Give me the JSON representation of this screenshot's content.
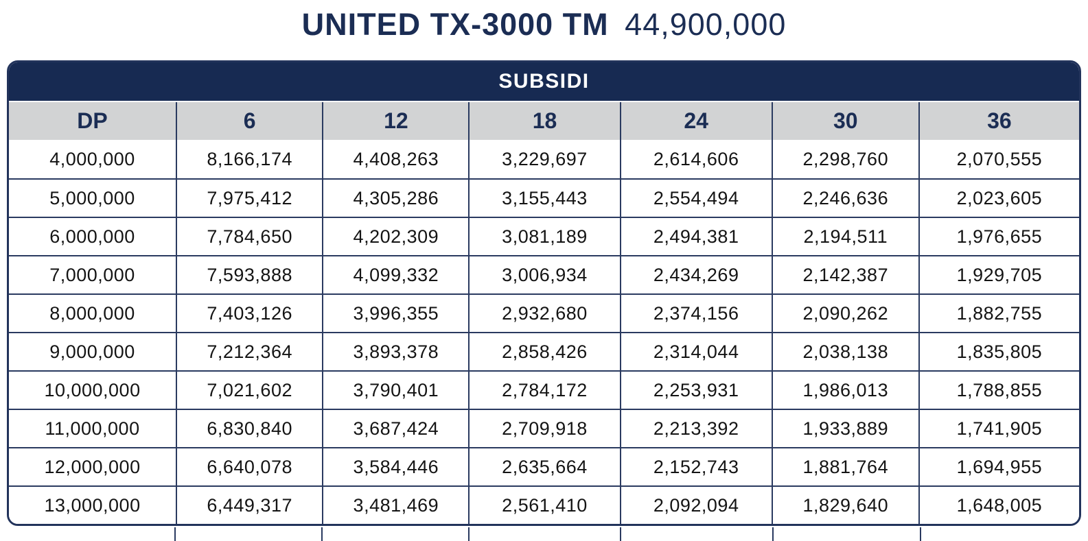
{
  "title": {
    "model": "UNITED TX-3000 TM",
    "price": "44,900,000"
  },
  "table": {
    "band_label": "SUBSIDI",
    "columns": [
      "DP",
      "6",
      "12",
      "18",
      "24",
      "30",
      "36"
    ],
    "rows": [
      [
        "4,000,000",
        "8,166,174",
        "4,408,263",
        "3,229,697",
        "2,614,606",
        "2,298,760",
        "2,070,555"
      ],
      [
        "5,000,000",
        "7,975,412",
        "4,305,286",
        "3,155,443",
        "2,554,494",
        "2,246,636",
        "2,023,605"
      ],
      [
        "6,000,000",
        "7,784,650",
        "4,202,309",
        "3,081,189",
        "2,494,381",
        "2,194,511",
        "1,976,655"
      ],
      [
        "7,000,000",
        "7,593,888",
        "4,099,332",
        "3,006,934",
        "2,434,269",
        "2,142,387",
        "1,929,705"
      ],
      [
        "8,000,000",
        "7,403,126",
        "3,996,355",
        "2,932,680",
        "2,374,156",
        "2,090,262",
        "1,882,755"
      ],
      [
        "9,000,000",
        "7,212,364",
        "3,893,378",
        "2,858,426",
        "2,314,044",
        "2,038,138",
        "1,835,805"
      ],
      [
        "10,000,000",
        "7,021,602",
        "3,790,401",
        "2,784,172",
        "2,253,931",
        "1,986,013",
        "1,788,855"
      ],
      [
        "11,000,000",
        "6,830,840",
        "3,687,424",
        "2,709,918",
        "2,213,392",
        "1,933,889",
        "1,741,905"
      ],
      [
        "12,000,000",
        "6,640,078",
        "3,584,446",
        "2,635,664",
        "2,152,743",
        "1,881,764",
        "1,694,955"
      ],
      [
        "13,000,000",
        "6,449,317",
        "3,481,469",
        "2,561,410",
        "2,092,094",
        "1,829,640",
        "1,648,005"
      ]
    ]
  },
  "colors": {
    "navy_band": "#172a52",
    "navy_text": "#1b2d54",
    "grid_border": "#2a3a60",
    "header_gray": "#d2d3d4",
    "body_text": "#141414",
    "background": "#ffffff"
  }
}
